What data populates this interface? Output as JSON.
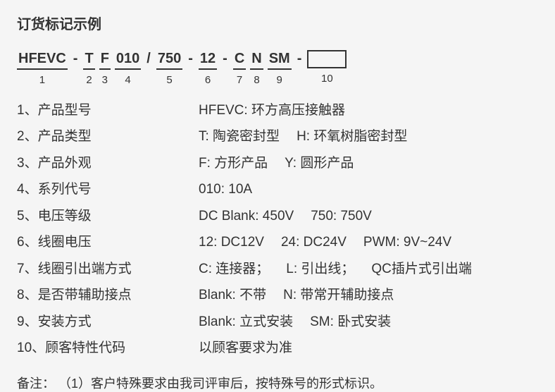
{
  "title": "订货标记示例",
  "code_segments": [
    {
      "text": "HFEVC",
      "num": "1"
    },
    {
      "sep": "-"
    },
    {
      "text": "T",
      "num": "2"
    },
    {
      "text": "F",
      "num": "3"
    },
    {
      "text": "010",
      "num": "4"
    },
    {
      "sep": "/"
    },
    {
      "text": "750",
      "num": "5"
    },
    {
      "sep": "-"
    },
    {
      "text": "12",
      "num": "6"
    },
    {
      "sep": "-"
    },
    {
      "text": "C",
      "num": "7"
    },
    {
      "text": "N",
      "num": "8"
    },
    {
      "text": "SM",
      "num": "9"
    },
    {
      "sep": "-"
    },
    {
      "box": true,
      "num": "10"
    }
  ],
  "rows": [
    {
      "label": "1、产品型号",
      "items": [
        "HFEVC: 环方高压接触器"
      ]
    },
    {
      "label": "2、产品类型",
      "items": [
        "T: 陶瓷密封型",
        "H: 环氧树脂密封型"
      ]
    },
    {
      "label": "3、产品外观",
      "items": [
        "F: 方形产品",
        "Y: 圆形产品"
      ]
    },
    {
      "label": "4、系列代号",
      "items": [
        "010: 10A"
      ]
    },
    {
      "label": "5、电压等级",
      "items": [
        "DC  Blank: 450V",
        "750: 750V"
      ]
    },
    {
      "label": "6、线圈电压",
      "items": [
        "12: DC12V",
        "24: DC24V",
        "PWM: 9V~24V"
      ]
    },
    {
      "label": "7、线圈引出端方式",
      "items": [
        "C: 连接器；",
        "L: 引出线；",
        "QC插片式引出端"
      ]
    },
    {
      "label": "8、是否带辅助接点",
      "items": [
        "Blank: 不带",
        "N: 带常开辅助接点"
      ]
    },
    {
      "label": "9、安装方式",
      "items": [
        "Blank: 立式安装",
        "SM: 卧式安装"
      ]
    },
    {
      "label": "10、顾客特性代码",
      "items": [
        "以顾客要求为准"
      ]
    }
  ],
  "note_label": "备注：",
  "note_text": "（1）客户特殊要求由我司评审后，按特殊号的形式标识。"
}
